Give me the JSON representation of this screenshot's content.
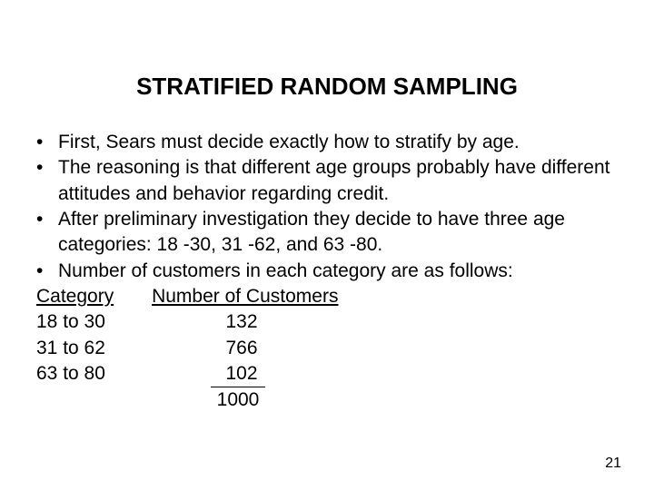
{
  "title": "STRATIFIED RANDOM SAMPLING",
  "bullets": [
    "First, Sears must decide exactly how to stratify by age.",
    "The reasoning is that different age groups probably have different attitudes and behavior regarding credit.",
    "After preliminary investigation they decide to have three age categories: 18 -30, 31 -62, and 63 -80.",
    "Number of customers in each category are as follows:"
  ],
  "table": {
    "col1_header": "Category",
    "col2_header": "Number of Customers",
    "rows": [
      {
        "category": "18 to 30",
        "count": "132"
      },
      {
        "category": "31 to 62",
        "count": "766"
      },
      {
        "category": "63 to 80",
        "count": "102"
      }
    ],
    "total": "1000"
  },
  "page_number": "21",
  "colors": {
    "background": "#ffffff",
    "text": "#000000"
  },
  "typography": {
    "title_fontsize": 26,
    "body_fontsize": 21,
    "pagenum_fontsize": 16,
    "font_family": "Arial"
  }
}
